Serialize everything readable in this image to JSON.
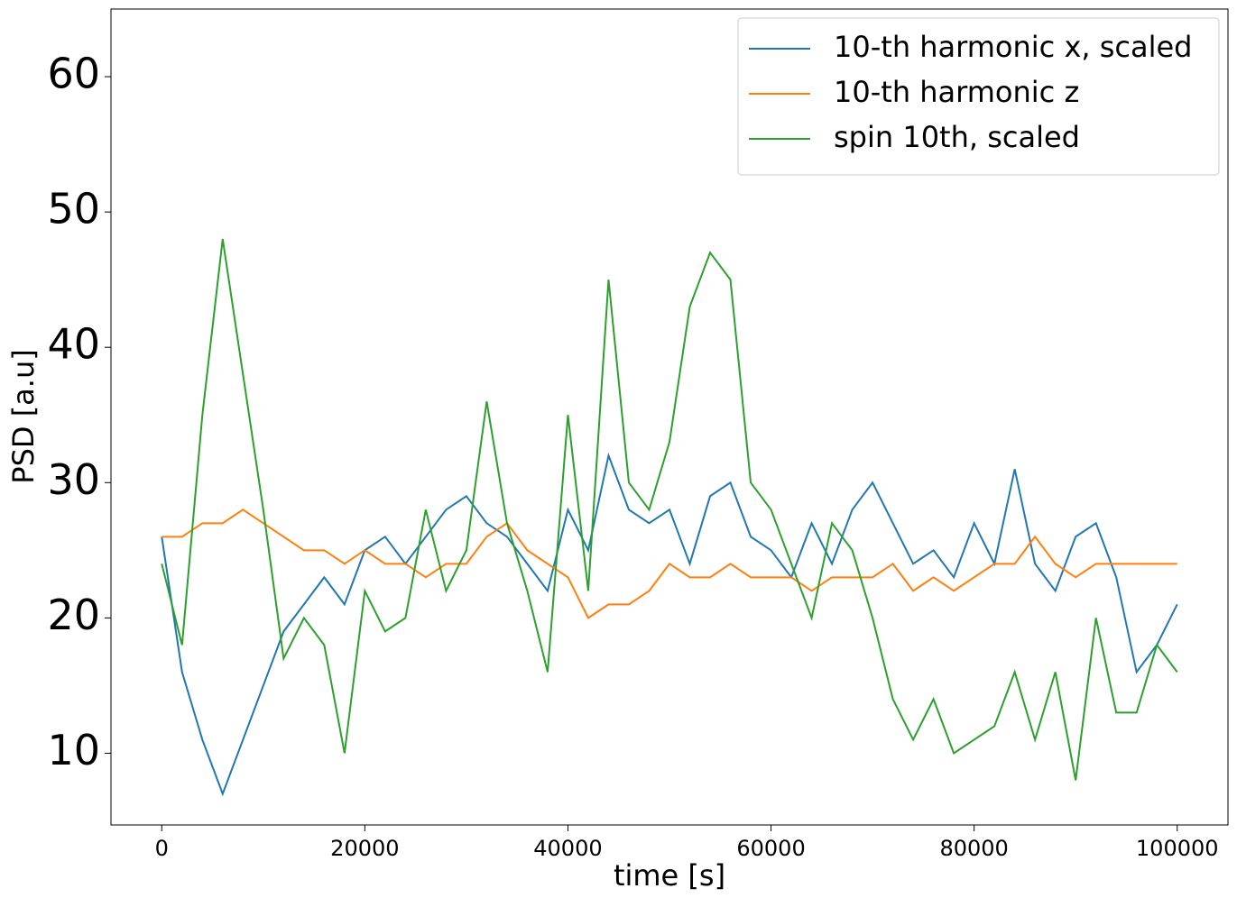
{
  "chart_data": {
    "type": "line",
    "xlabel": "time [s]",
    "ylabel": "PSD [a.u]",
    "x": [
      0,
      2000,
      4000,
      6000,
      8000,
      10000,
      12000,
      14000,
      16000,
      18000,
      20000,
      22000,
      24000,
      26000,
      28000,
      30000,
      32000,
      34000,
      36000,
      38000,
      40000,
      42000,
      44000,
      46000,
      48000,
      50000,
      52000,
      54000,
      56000,
      58000,
      60000,
      62000,
      64000,
      66000,
      68000,
      70000,
      72000,
      74000,
      76000,
      78000,
      80000,
      82000,
      84000,
      86000,
      88000,
      90000,
      92000,
      94000,
      96000,
      98000,
      100000
    ],
    "series": [
      {
        "name": "10-th harmonic x, scaled",
        "color": "#1f77b4",
        "values": [
          26,
          16,
          11,
          7,
          11,
          15,
          19,
          21,
          23,
          21,
          25,
          26,
          24,
          26,
          28,
          29,
          27,
          26,
          24,
          22,
          28,
          25,
          32,
          28,
          27,
          28,
          24,
          29,
          30,
          26,
          25,
          23,
          27,
          24,
          28,
          30,
          27,
          24,
          25,
          23,
          27,
          24,
          31,
          24,
          22,
          26,
          27,
          23,
          16,
          18,
          21
        ]
      },
      {
        "name": "10-th harmonic z",
        "color": "#ff7f0e",
        "values": [
          26,
          26,
          27,
          27,
          28,
          27,
          26,
          25,
          25,
          24,
          25,
          24,
          24,
          23,
          24,
          24,
          26,
          27,
          25,
          24,
          23,
          20,
          21,
          21,
          22,
          24,
          23,
          23,
          24,
          23,
          23,
          23,
          22,
          23,
          23,
          23,
          24,
          22,
          23,
          22,
          23,
          24,
          24,
          26,
          24,
          23,
          24,
          24,
          24,
          24,
          24
        ]
      },
      {
        "name": "spin 10th, scaled",
        "color": "#2ca02c",
        "values": [
          24,
          18,
          35,
          48,
          38,
          28,
          17,
          20,
          18,
          10,
          22,
          19,
          20,
          28,
          22,
          25,
          36,
          27,
          22,
          16,
          35,
          22,
          45,
          30,
          28,
          33,
          43,
          47,
          45,
          30,
          28,
          24,
          20,
          27,
          25,
          20,
          14,
          11,
          14,
          10,
          11,
          12,
          16,
          11,
          16,
          8,
          20,
          13,
          13,
          18,
          16
        ]
      }
    ],
    "xlim": [
      -5000,
      105000
    ],
    "ylim": [
      4.7,
      65
    ],
    "xticks": [
      0,
      20000,
      40000,
      60000,
      80000,
      100000
    ],
    "yticks": [
      10,
      20,
      30,
      40,
      50,
      60
    ],
    "legend": "upper right"
  }
}
